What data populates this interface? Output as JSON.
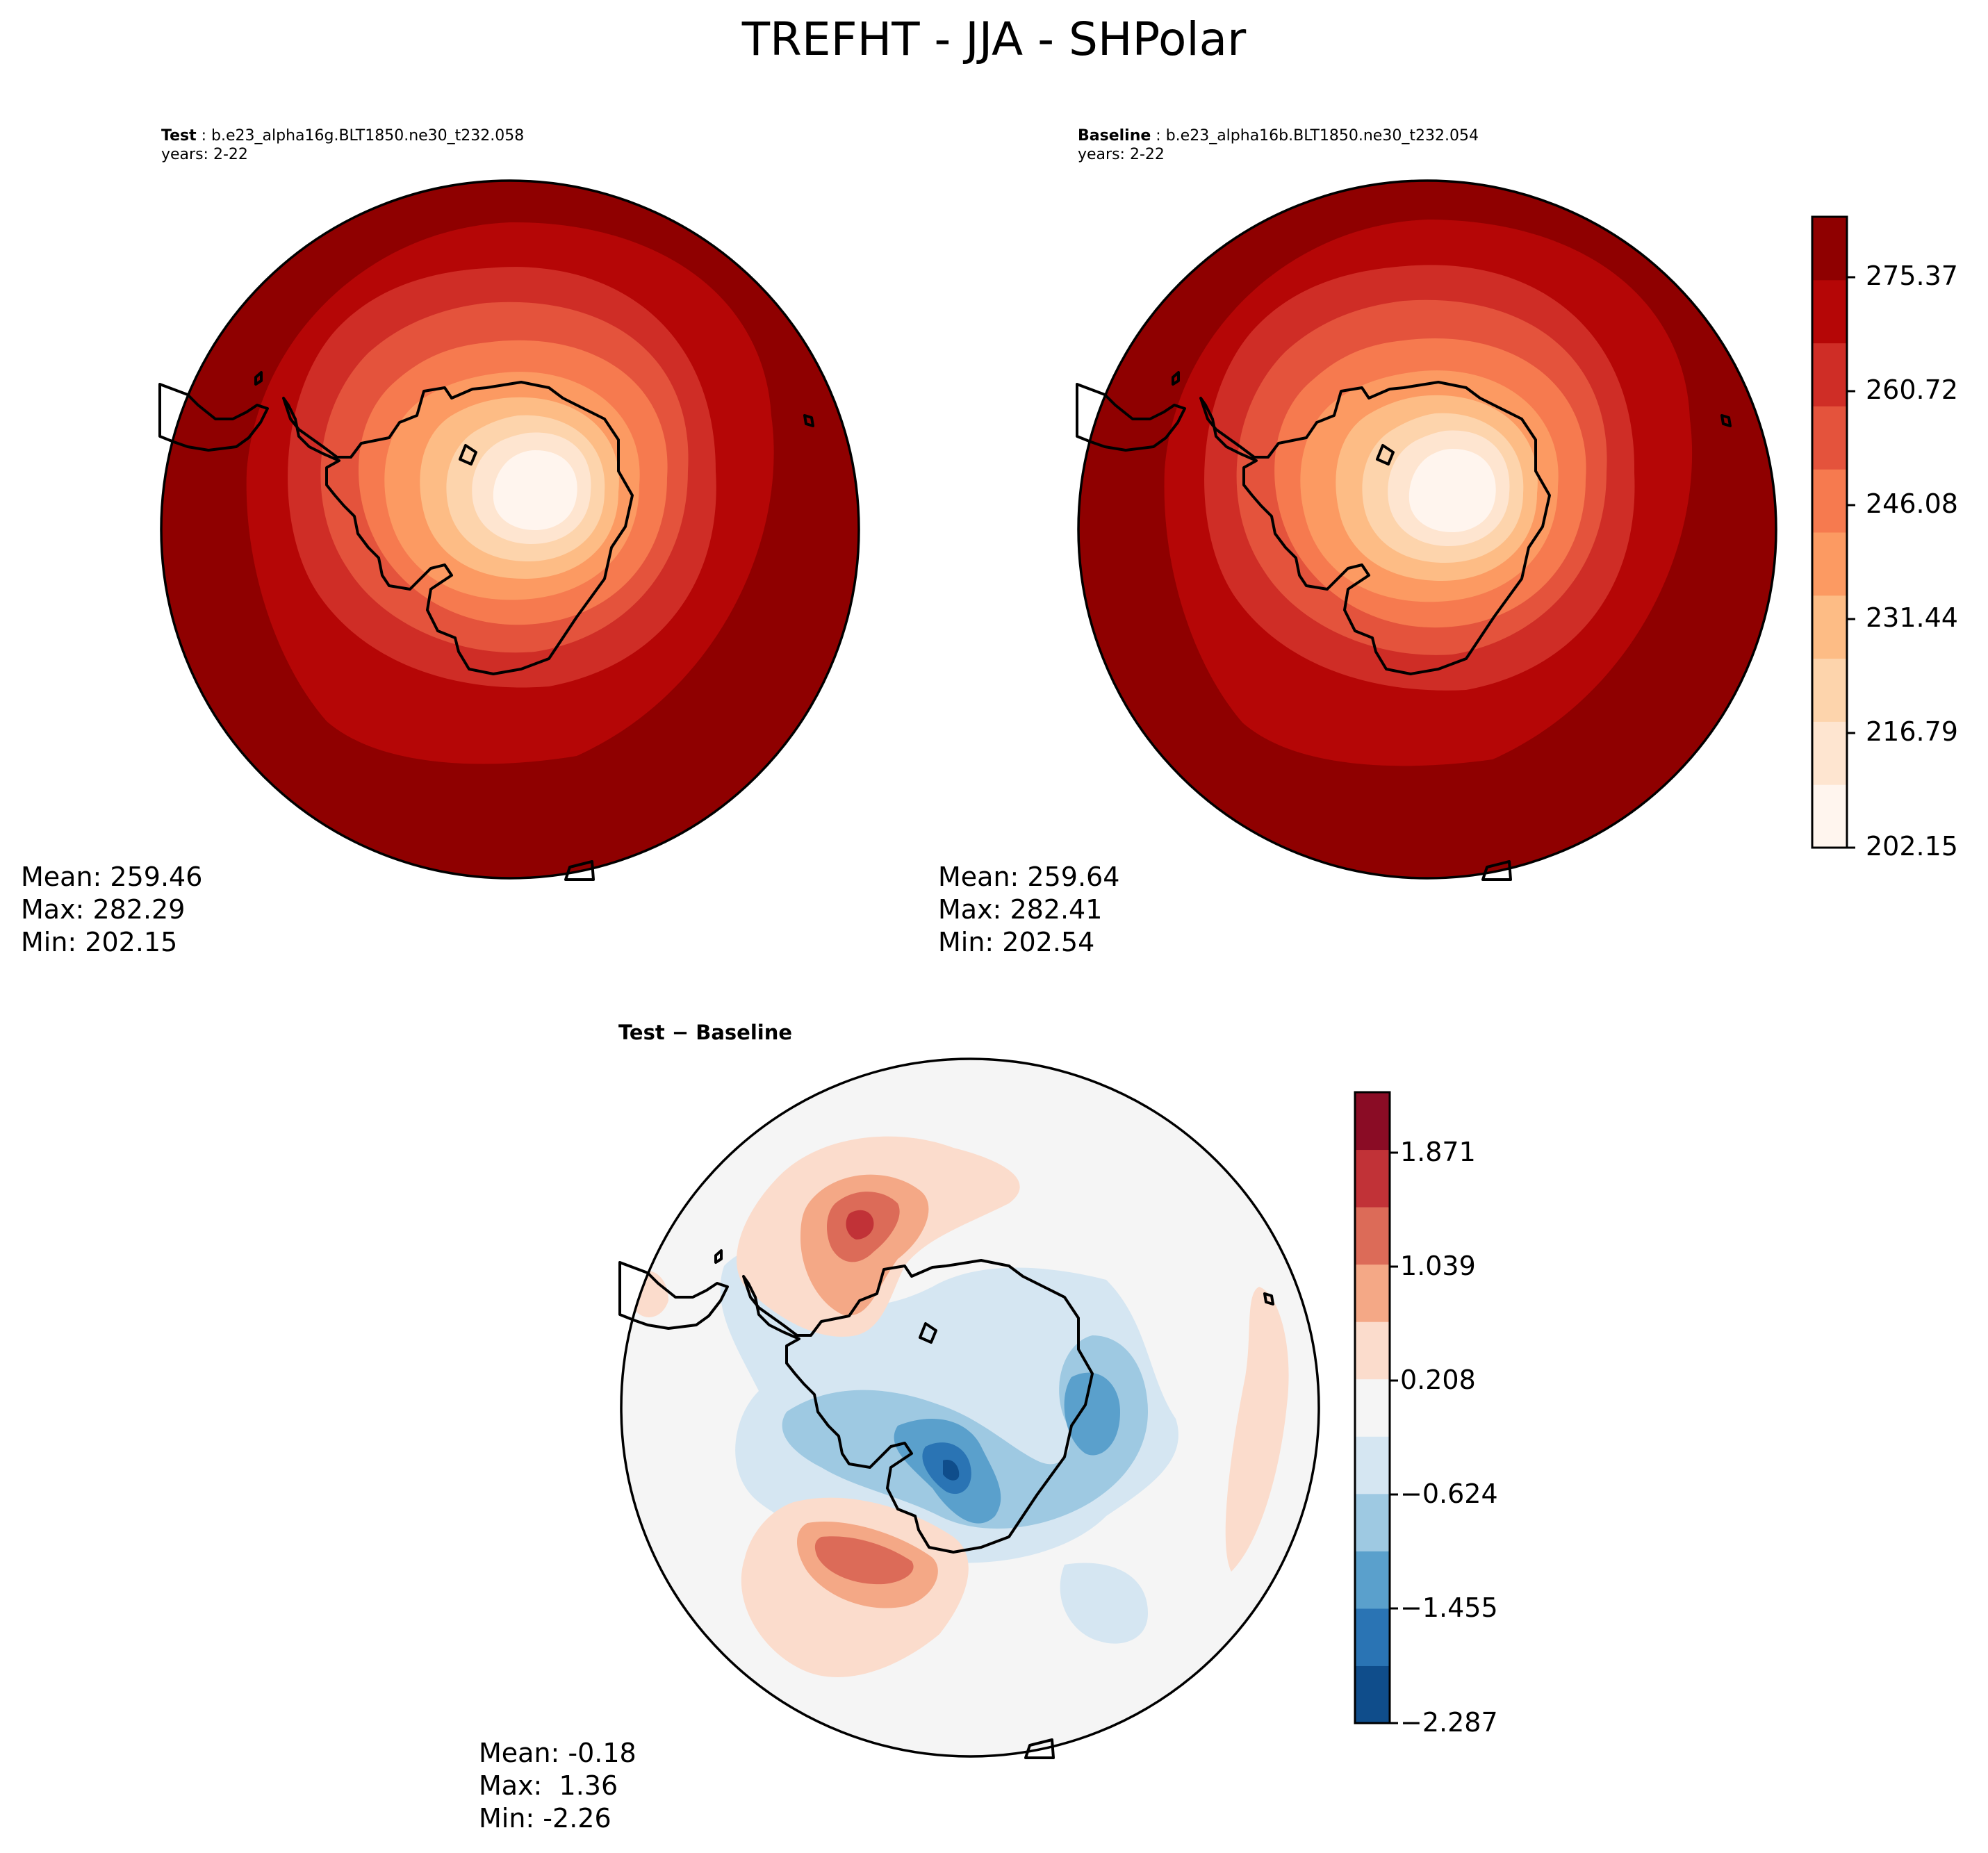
{
  "figure_title": "TREFHT - JJA - SHPolar",
  "panels": {
    "test": {
      "label": "Test",
      "case": "b.e23_alpha16g.BLT1850.ne30_t232.058",
      "years": "years: 2-22",
      "stats": {
        "mean": "Mean: 259.46",
        "max": "Max: 282.29",
        "min": "Min: 202.15"
      }
    },
    "baseline": {
      "label": "Baseline",
      "case": "b.e23_alpha16b.BLT1850.ne30_t232.054",
      "years": "years: 2-22",
      "stats": {
        "mean": "Mean: 259.64",
        "max": "Max: 282.41",
        "min": "Min: 202.54"
      }
    },
    "diff": {
      "label": "Test − Baseline",
      "stats": {
        "mean": "Mean: -0.18",
        "max": "Max:  1.36",
        "min": "Min: -2.26"
      }
    }
  },
  "colorbars": {
    "main": {
      "ticks": [
        "275.37",
        "260.72",
        "246.08",
        "231.44",
        "216.79",
        "202.15"
      ],
      "colors": [
        "#fff5ee",
        "#fee5d0",
        "#fdd4ac",
        "#fdbc85",
        "#fc9a62",
        "#f67a4f",
        "#e4533c",
        "#cf2d26",
        "#b50606",
        "#8f0000"
      ]
    },
    "diff": {
      "ticks": [
        "1.871",
        "1.039",
        "0.208",
        "−0.624",
        "−1.455",
        "−2.287"
      ],
      "colors": [
        "#0f4d8b",
        "#2a74b4",
        "#5aa0cc",
        "#9ec9e2",
        "#d5e6f2",
        "#f5f5f5",
        "#fbdccc",
        "#f4a886",
        "#dc6b58",
        "#c13237",
        "#8a0c25"
      ]
    }
  }
}
